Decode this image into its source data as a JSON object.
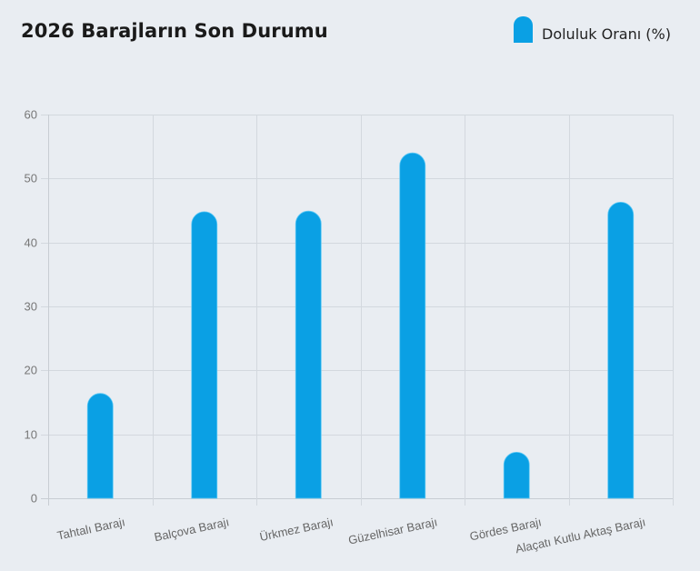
{
  "title": "2026 Barajların Son Durumu",
  "legend": {
    "label": "Doluluk Oranı (%)",
    "color": "#0aa0e4"
  },
  "colors": {
    "bar": "#0aa0e4",
    "grid": "#d3d8de",
    "axis": "#c8cdd3",
    "background": "#e9edf2"
  },
  "chart_data": {
    "type": "bar",
    "title": "2026 Barajların Son Durumu",
    "xlabel": "",
    "ylabel": "",
    "categories": [
      "Tahtalı Barajı",
      "Balçova Barajı",
      "Ürkmez Barajı",
      "Güzelhisar Barajı",
      "Gördes Barajı",
      "Alaçatı Kutlu Aktaş Barajı"
    ],
    "series": [
      {
        "name": "Doluluk Oranı (%)",
        "values": [
          16.4,
          44.8,
          44.9,
          54.0,
          7.2,
          46.3
        ],
        "color": "#0aa0e4"
      }
    ],
    "ylim": [
      0,
      60
    ],
    "yticks": [
      0,
      10,
      20,
      30,
      40,
      50,
      60
    ],
    "grid": true,
    "legend_position": "top-right"
  }
}
